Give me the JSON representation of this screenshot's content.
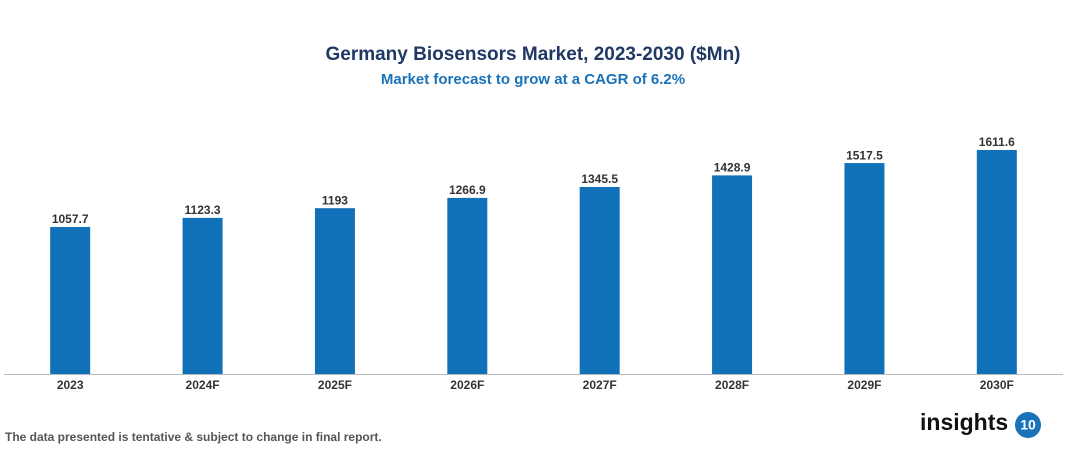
{
  "chart_data": {
    "type": "bar",
    "title": "Germany Biosensors Market, 2023-2030 ($Mn)",
    "subtitle": "Market forecast to grow at a CAGR of 6.2%",
    "categories": [
      "2023",
      "2024F",
      "2025F",
      "2026F",
      "2027F",
      "2028F",
      "2029F",
      "2030F"
    ],
    "values": [
      1057.7,
      1123.3,
      1193,
      1266.9,
      1345.5,
      1428.9,
      1517.5,
      1611.6
    ],
    "color": "#1070b8"
  },
  "footer": {
    "note": "The data presented is tentative & subject to change in final report.",
    "logo": {
      "text": "insights",
      "badge": "10"
    }
  }
}
